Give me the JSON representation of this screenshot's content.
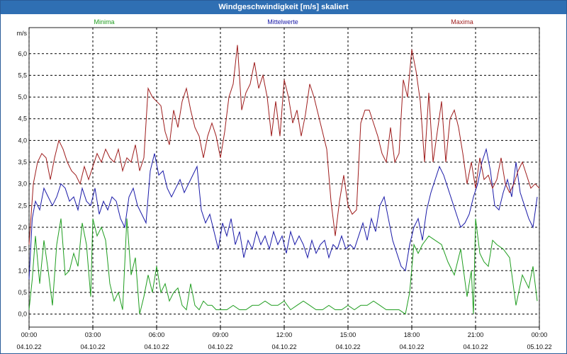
{
  "window": {
    "title": "Windgeschwindigkeit [m/s] skaliert"
  },
  "chart_data": {
    "type": "line",
    "title": "Windgeschwindigkeit [m/s] skaliert",
    "ylabel": "m/s",
    "ylim": [
      -0.3,
      6.6
    ],
    "yticks": [
      "0,0",
      "0,5",
      "1,0",
      "1,5",
      "2,0",
      "2,5",
      "3,0",
      "3,5",
      "4,0",
      "4,5",
      "5,0",
      "5,5",
      "6,0"
    ],
    "ytick_values": [
      0,
      0.5,
      1,
      1.5,
      2,
      2.5,
      3,
      3.5,
      4,
      4.5,
      5,
      5.5,
      6
    ],
    "xlim": [
      0,
      24
    ],
    "xticks": [
      {
        "time": "00:00",
        "date": "04.10.22",
        "hour": 0
      },
      {
        "time": "03:00",
        "date": "04.10.22",
        "hour": 3
      },
      {
        "time": "06:00",
        "date": "04.10.22",
        "hour": 6
      },
      {
        "time": "09:00",
        "date": "04.10.22",
        "hour": 9
      },
      {
        "time": "12:00",
        "date": "04.10.22",
        "hour": 12
      },
      {
        "time": "15:00",
        "date": "04.10.22",
        "hour": 15
      },
      {
        "time": "18:00",
        "date": "04.10.22",
        "hour": 18
      },
      {
        "time": "21:00",
        "date": "04.10.22",
        "hour": 21
      },
      {
        "time": "00:00",
        "date": "05.10.22",
        "hour": 24
      }
    ],
    "grid": true,
    "legend_position": "top",
    "series": [
      {
        "name": "Minima",
        "color": "#1f9d1f",
        "x": [
          0,
          0.15,
          0.3,
          0.5,
          0.7,
          0.9,
          1.1,
          1.3,
          1.5,
          1.7,
          1.9,
          2.1,
          2.3,
          2.5,
          2.7,
          2.8,
          2.9,
          3.0,
          3.2,
          3.4,
          3.6,
          3.8,
          4.0,
          4.2,
          4.4,
          4.6,
          4.8,
          5.0,
          5.2,
          5.4,
          5.6,
          5.8,
          6.0,
          6.2,
          6.4,
          6.6,
          6.8,
          7.0,
          7.2,
          7.4,
          7.6,
          7.8,
          8.0,
          8.2,
          8.4,
          8.6,
          8.8,
          9.0,
          9.3,
          9.6,
          9.9,
          10.2,
          10.5,
          10.8,
          11.1,
          11.4,
          11.7,
          12.0,
          12.3,
          12.6,
          12.9,
          13.2,
          13.5,
          13.8,
          14.1,
          14.4,
          14.7,
          15.0,
          15.3,
          15.6,
          15.9,
          16.2,
          16.5,
          16.8,
          17.1,
          17.4,
          17.7,
          17.9,
          18.1,
          18.3,
          18.5,
          18.8,
          19.1,
          19.4,
          19.7,
          20.0,
          20.3,
          20.6,
          20.8,
          20.9,
          21.0,
          21.2,
          21.4,
          21.6,
          21.8,
          22.0,
          22.3,
          22.6,
          22.9,
          23.2,
          23.5,
          23.7,
          23.9
        ],
        "y": [
          0.1,
          0.8,
          1.8,
          0.7,
          1.7,
          1.0,
          0.2,
          1.6,
          2.2,
          0.9,
          1.0,
          1.4,
          1.1,
          2.1,
          1.6,
          1.0,
          0.4,
          2.2,
          1.8,
          2.0,
          1.7,
          0.7,
          0.3,
          0.5,
          0.1,
          2.2,
          0.9,
          1.3,
          0.0,
          0.4,
          0.9,
          0.5,
          1.1,
          0.5,
          0.7,
          0.3,
          0.5,
          0.6,
          0.2,
          0.1,
          0.7,
          0.2,
          0.1,
          0.3,
          0.2,
          0.2,
          0.1,
          0.1,
          0.1,
          0.2,
          0.1,
          0.1,
          0.2,
          0.2,
          0.3,
          0.2,
          0.2,
          0.3,
          0.1,
          0.2,
          0.3,
          0.2,
          0.1,
          0.1,
          0.2,
          0.1,
          0.1,
          0.2,
          0.1,
          0.2,
          0.2,
          0.3,
          0.2,
          0.1,
          0.1,
          0.1,
          0.0,
          0.5,
          1.6,
          1.4,
          1.6,
          1.8,
          1.7,
          1.6,
          1.2,
          0.9,
          1.5,
          0.4,
          1.0,
          0.0,
          2.2,
          1.4,
          1.2,
          1.1,
          1.7,
          1.6,
          1.5,
          1.3,
          0.2,
          0.9,
          0.6,
          1.1,
          0.3
        ]
      },
      {
        "name": "Mittelwerte",
        "color": "#1a1aa8",
        "x": [
          0,
          0.15,
          0.3,
          0.5,
          0.7,
          0.9,
          1.1,
          1.3,
          1.5,
          1.7,
          1.9,
          2.1,
          2.3,
          2.5,
          2.7,
          2.9,
          3.1,
          3.3,
          3.5,
          3.7,
          3.9,
          4.1,
          4.3,
          4.5,
          4.7,
          4.9,
          5.1,
          5.3,
          5.5,
          5.7,
          5.9,
          6.1,
          6.3,
          6.5,
          6.7,
          6.9,
          7.1,
          7.3,
          7.5,
          7.7,
          7.9,
          8.1,
          8.3,
          8.5,
          8.7,
          8.9,
          9.1,
          9.3,
          9.5,
          9.7,
          9.9,
          10.1,
          10.3,
          10.5,
          10.7,
          10.9,
          11.1,
          11.3,
          11.5,
          11.7,
          11.9,
          12.1,
          12.3,
          12.5,
          12.7,
          12.9,
          13.1,
          13.3,
          13.5,
          13.7,
          13.9,
          14.1,
          14.3,
          14.5,
          14.7,
          14.9,
          15.1,
          15.3,
          15.5,
          15.7,
          15.9,
          16.1,
          16.3,
          16.5,
          16.7,
          16.9,
          17.1,
          17.3,
          17.5,
          17.7,
          17.9,
          18.1,
          18.3,
          18.5,
          18.7,
          18.9,
          19.1,
          19.3,
          19.5,
          19.7,
          19.9,
          20.1,
          20.3,
          20.5,
          20.7,
          20.9,
          21.1,
          21.3,
          21.5,
          21.7,
          21.9,
          22.1,
          22.3,
          22.5,
          22.7,
          22.9,
          23.1,
          23.3,
          23.5,
          23.7,
          23.9
        ],
        "y": [
          0.8,
          2.2,
          2.6,
          2.4,
          2.9,
          2.7,
          2.5,
          2.7,
          3.0,
          2.9,
          2.6,
          2.7,
          2.4,
          2.9,
          2.6,
          2.5,
          2.9,
          2.3,
          2.6,
          2.4,
          2.7,
          2.6,
          2.2,
          2.0,
          2.7,
          2.9,
          2.5,
          2.3,
          2.1,
          3.3,
          3.7,
          3.2,
          3.3,
          2.9,
          2.7,
          2.9,
          3.1,
          2.8,
          3.0,
          3.2,
          3.4,
          2.4,
          2.1,
          2.3,
          1.9,
          1.5,
          2.1,
          1.8,
          2.2,
          1.6,
          1.9,
          1.3,
          1.7,
          1.5,
          1.9,
          1.6,
          1.8,
          1.5,
          1.9,
          1.6,
          1.8,
          1.4,
          1.9,
          1.6,
          1.8,
          1.6,
          1.3,
          1.7,
          1.4,
          1.6,
          1.7,
          1.3,
          1.6,
          1.5,
          1.8,
          1.5,
          1.6,
          1.5,
          1.8,
          2.1,
          1.7,
          2.2,
          1.9,
          2.5,
          2.7,
          2.2,
          1.7,
          1.4,
          1.1,
          1.0,
          1.6,
          2.0,
          2.2,
          1.7,
          2.4,
          2.8,
          3.1,
          3.4,
          3.2,
          2.9,
          2.6,
          2.3,
          2.0,
          2.1,
          2.3,
          2.7,
          3.0,
          3.5,
          3.8,
          3.3,
          2.5,
          2.4,
          2.8,
          3.1,
          2.7,
          3.5,
          2.8,
          2.5,
          2.2,
          2.0,
          2.7
        ]
      },
      {
        "name": "Maxima",
        "color": "#9e1c1c",
        "x": [
          0,
          0.2,
          0.4,
          0.6,
          0.8,
          1.0,
          1.2,
          1.4,
          1.6,
          1.8,
          2.0,
          2.2,
          2.4,
          2.6,
          2.8,
          3.0,
          3.2,
          3.4,
          3.6,
          3.8,
          4.0,
          4.2,
          4.4,
          4.6,
          4.8,
          5.0,
          5.2,
          5.4,
          5.6,
          5.8,
          6.0,
          6.2,
          6.4,
          6.6,
          6.8,
          7.0,
          7.2,
          7.4,
          7.6,
          7.8,
          8.0,
          8.2,
          8.4,
          8.6,
          8.8,
          9.0,
          9.2,
          9.4,
          9.6,
          9.8,
          10.0,
          10.2,
          10.4,
          10.6,
          10.8,
          11.0,
          11.2,
          11.4,
          11.6,
          11.8,
          12.0,
          12.2,
          12.4,
          12.6,
          12.8,
          13.0,
          13.2,
          13.4,
          13.6,
          13.8,
          14.0,
          14.2,
          14.4,
          14.6,
          14.8,
          15.0,
          15.2,
          15.4,
          15.6,
          15.8,
          16.0,
          16.2,
          16.4,
          16.6,
          16.8,
          17.0,
          17.2,
          17.4,
          17.6,
          17.8,
          18.0,
          18.2,
          18.4,
          18.6,
          18.8,
          19.0,
          19.2,
          19.4,
          19.6,
          19.8,
          20.0,
          20.2,
          20.4,
          20.6,
          20.8,
          21.0,
          21.2,
          21.4,
          21.6,
          21.8,
          22.0,
          22.2,
          22.4,
          22.6,
          22.8,
          23.0,
          23.2,
          23.4,
          23.6,
          23.8,
          24.0
        ],
        "y": [
          1.6,
          3.0,
          3.5,
          3.7,
          3.6,
          3.1,
          3.6,
          4.0,
          3.8,
          3.5,
          3.3,
          3.2,
          3.0,
          3.4,
          3.1,
          3.4,
          3.7,
          3.5,
          3.8,
          3.6,
          3.5,
          3.8,
          3.3,
          3.6,
          3.5,
          3.9,
          3.3,
          3.6,
          5.2,
          5.0,
          4.9,
          4.8,
          4.2,
          3.9,
          4.7,
          4.3,
          4.9,
          5.2,
          4.7,
          4.3,
          4.1,
          3.6,
          4.1,
          4.4,
          4.1,
          3.6,
          4.2,
          5.0,
          5.3,
          6.2,
          4.7,
          5.1,
          5.3,
          5.8,
          5.2,
          5.5,
          5.0,
          4.1,
          4.9,
          4.1,
          5.4,
          5.0,
          4.4,
          4.7,
          4.1,
          4.6,
          5.3,
          5.0,
          4.6,
          4.2,
          3.8,
          2.6,
          1.8,
          2.6,
          3.2,
          2.5,
          2.3,
          2.4,
          4.4,
          4.7,
          4.7,
          4.4,
          4.1,
          3.7,
          3.5,
          4.3,
          3.5,
          3.7,
          5.4,
          5.0,
          6.1,
          5.6,
          4.9,
          3.5,
          5.1,
          3.5,
          4.2,
          4.9,
          3.5,
          4.5,
          4.7,
          4.3,
          3.7,
          3.0,
          3.5,
          2.9,
          3.6,
          3.1,
          3.2,
          2.9,
          3.1,
          3.6,
          3.0,
          2.8,
          3.0,
          3.3,
          3.5,
          3.2,
          2.9,
          3.0,
          2.9
        ]
      }
    ]
  }
}
